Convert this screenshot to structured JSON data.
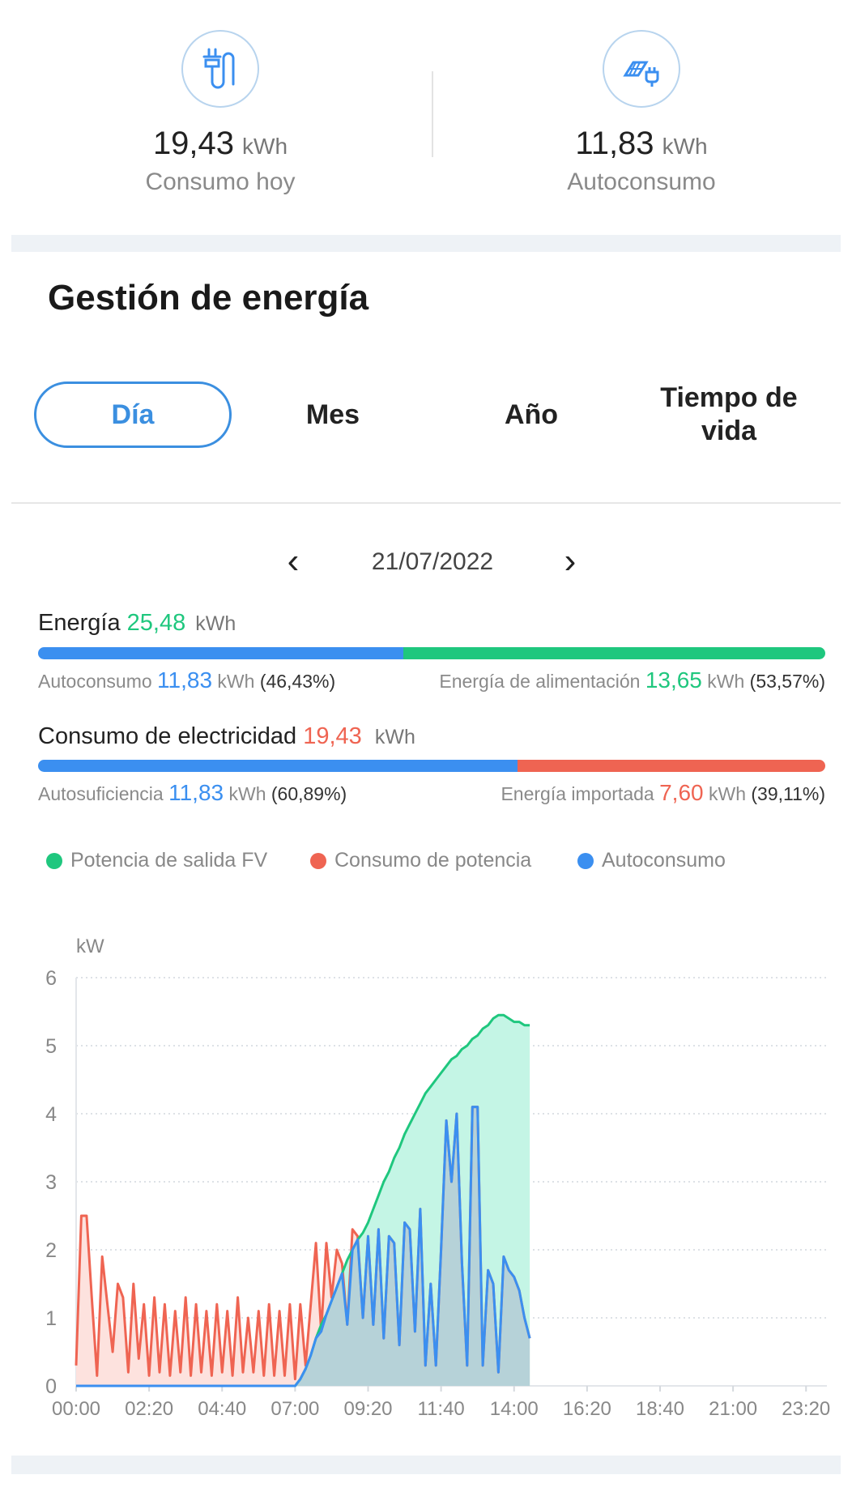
{
  "summary": {
    "consumption": {
      "value": "19,43",
      "unit": "kWh",
      "label": "Consumo hoy",
      "icon": "plug-icon"
    },
    "self_consumption": {
      "value": "11,83",
      "unit": "kWh",
      "label": "Autoconsumo",
      "icon": "solar-panel-plug-icon"
    }
  },
  "section_title": "Gestión de energía",
  "tabs": [
    {
      "label": "Día",
      "active": true
    },
    {
      "label": "Mes"
    },
    {
      "label": "Año"
    },
    {
      "label": "Tiempo de vida"
    }
  ],
  "date_nav": {
    "date": "21/07/2022",
    "prev": "‹",
    "next": "›"
  },
  "energy": {
    "label": "Energía",
    "value": "25,48",
    "unit": "kWh",
    "left": {
      "label": "Autoconsumo",
      "value": "11,83",
      "unit": "kWh",
      "pct": "(46,43%)",
      "fraction": 0.4643
    },
    "right": {
      "label": "Energía de alimentación",
      "value": "13,65",
      "unit": "kWh",
      "pct": "(53,57%)"
    }
  },
  "electricity": {
    "label": "Consumo de electricidad",
    "value": "19,43",
    "unit": "kWh",
    "left": {
      "label": "Autosuficiencia",
      "value": "11,83",
      "unit": "kWh",
      "pct": "(60,89%)",
      "fraction": 0.6089
    },
    "right": {
      "label": "Energía importada",
      "value": "7,60",
      "unit": "kWh",
      "pct": "(39,11%)"
    }
  },
  "colors": {
    "blue": "#3b8ff0",
    "green": "#1fc77e",
    "red": "#ef6452"
  },
  "chart_data": {
    "type": "area",
    "ylabel": "kW",
    "ylim": [
      0,
      6
    ],
    "yticks": [
      "0",
      "1",
      "2",
      "3",
      "4",
      "5",
      "6"
    ],
    "xticks": [
      "00:00",
      "02:20",
      "04:40",
      "07:00",
      "09:20",
      "11:40",
      "14:00",
      "16:20",
      "18:40",
      "21:00",
      "23:20"
    ],
    "xrange": [
      "00:00",
      "24:00"
    ],
    "grid": true,
    "legend_placement": "top",
    "x": [
      "00:00",
      "00:10",
      "00:20",
      "00:30",
      "00:40",
      "00:50",
      "01:00",
      "01:10",
      "01:20",
      "01:30",
      "01:40",
      "01:50",
      "02:00",
      "02:10",
      "02:20",
      "02:30",
      "02:40",
      "02:50",
      "03:00",
      "03:10",
      "03:20",
      "03:30",
      "03:40",
      "03:50",
      "04:00",
      "04:10",
      "04:20",
      "04:30",
      "04:40",
      "04:50",
      "05:00",
      "05:10",
      "05:20",
      "05:30",
      "05:40",
      "05:50",
      "06:00",
      "06:10",
      "06:20",
      "06:30",
      "06:40",
      "06:50",
      "07:00",
      "07:10",
      "07:20",
      "07:30",
      "07:40",
      "07:50",
      "08:00",
      "08:10",
      "08:20",
      "08:30",
      "08:40",
      "08:50",
      "09:00",
      "09:10",
      "09:20",
      "09:30",
      "09:40",
      "09:50",
      "10:00",
      "10:10",
      "10:20",
      "10:30",
      "10:40",
      "10:50",
      "11:00",
      "11:10",
      "11:20",
      "11:30",
      "11:40",
      "11:50",
      "12:00",
      "12:10",
      "12:20",
      "12:30",
      "12:40",
      "12:50",
      "13:00",
      "13:10",
      "13:20",
      "13:30",
      "13:40",
      "13:50",
      "14:00",
      "14:10",
      "14:20",
      "14:30"
    ],
    "series": [
      {
        "name": "Potencia de salida FV",
        "color": "#1fc77e",
        "values": [
          0,
          0,
          0,
          0,
          0,
          0,
          0,
          0,
          0,
          0,
          0,
          0,
          0,
          0,
          0,
          0,
          0,
          0,
          0,
          0,
          0,
          0,
          0,
          0,
          0,
          0,
          0,
          0,
          0,
          0,
          0,
          0,
          0,
          0,
          0,
          0,
          0,
          0,
          0,
          0,
          0,
          0,
          0,
          0.1,
          0.25,
          0.45,
          0.7,
          0.9,
          1.05,
          1.25,
          1.45,
          1.65,
          1.85,
          2.0,
          2.15,
          2.25,
          2.4,
          2.6,
          2.8,
          3.0,
          3.15,
          3.35,
          3.5,
          3.7,
          3.85,
          4.0,
          4.15,
          4.3,
          4.4,
          4.5,
          4.6,
          4.7,
          4.8,
          4.85,
          4.95,
          5.0,
          5.1,
          5.15,
          5.25,
          5.3,
          5.4,
          5.45,
          5.45,
          5.4,
          5.35,
          5.35,
          5.3,
          5.3
        ]
      },
      {
        "name": "Consumo de potencia",
        "color": "#ef6452",
        "values": [
          0.3,
          2.5,
          2.5,
          1.3,
          0.15,
          1.9,
          1.2,
          0.5,
          1.5,
          1.3,
          0.2,
          1.5,
          0.4,
          1.2,
          0.15,
          1.3,
          0.2,
          1.2,
          0.15,
          1.1,
          0.2,
          1.3,
          0.15,
          1.2,
          0.2,
          1.1,
          0.15,
          1.2,
          0.2,
          1.1,
          0.15,
          1.3,
          0.2,
          1.0,
          0.2,
          1.1,
          0.15,
          1.2,
          0.15,
          1.1,
          0.15,
          1.2,
          0.1,
          1.2,
          0.3,
          1.2,
          2.1,
          0.8,
          2.1,
          1.3,
          2.0,
          1.8,
          0.9,
          2.3,
          2.2,
          1.0,
          2.2,
          0.9,
          2.3,
          0.7,
          2.2,
          2.1,
          0.6,
          2.4,
          2.3,
          0.8,
          2.6,
          0.3,
          1.5,
          0.3,
          2.0,
          3.9,
          3.0,
          4.0,
          1.8,
          0.3,
          4.1,
          4.1,
          0.3,
          1.7,
          1.5,
          0.2,
          1.9,
          1.7,
          1.6,
          1.4,
          1.0,
          0.7
        ]
      },
      {
        "name": "Autoconsumo",
        "color": "#3b8ff0",
        "values": [
          0,
          0,
          0,
          0,
          0,
          0,
          0,
          0,
          0,
          0,
          0,
          0,
          0,
          0,
          0,
          0,
          0,
          0,
          0,
          0,
          0,
          0,
          0,
          0,
          0,
          0,
          0,
          0,
          0,
          0,
          0,
          0,
          0,
          0,
          0,
          0,
          0,
          0,
          0,
          0,
          0,
          0,
          0,
          0.1,
          0.25,
          0.45,
          0.7,
          0.8,
          1.05,
          1.25,
          1.45,
          1.65,
          0.9,
          2.0,
          2.15,
          1.0,
          2.2,
          0.9,
          2.3,
          0.7,
          2.2,
          2.1,
          0.6,
          2.4,
          2.3,
          0.8,
          2.6,
          0.3,
          1.5,
          0.3,
          2.0,
          3.9,
          3.0,
          4.0,
          1.8,
          0.3,
          4.1,
          4.1,
          0.3,
          1.7,
          1.5,
          0.2,
          1.9,
          1.7,
          1.6,
          1.4,
          1.0,
          0.7
        ]
      }
    ]
  }
}
